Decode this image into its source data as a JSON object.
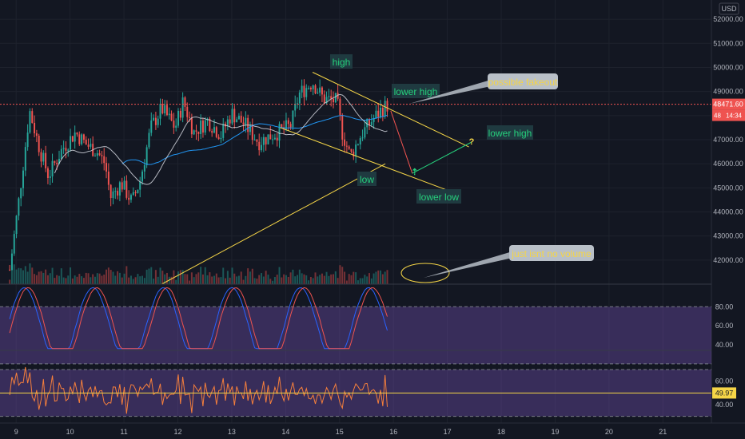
{
  "chart_data": {
    "type": "candlestick",
    "currency_label": "USD",
    "price_axis": {
      "range": [
        41000,
        52800
      ],
      "ticks": [
        "52000.00",
        "51000.00",
        "50000.00",
        "49000.00",
        "48000.00",
        "47000.00",
        "46000.00",
        "45000.00",
        "44000.00",
        "43000.00",
        "42000.00"
      ]
    },
    "last_price": {
      "value": 48471.6,
      "label": "48471.60",
      "countdown": "14:34",
      "tag_partial": "48"
    },
    "x_axis": {
      "ticks": [
        "9",
        "10",
        "11",
        "12",
        "13",
        "14",
        "15",
        "16",
        "17",
        "18",
        "19",
        "20",
        "21"
      ],
      "day_range": [
        8.7,
        21.9
      ]
    },
    "candles_summary": {
      "day_start": 8.88,
      "day_end": 15.92,
      "price_path": [
        [
          8.88,
          41600
        ],
        [
          9.05,
          44500
        ],
        [
          9.25,
          48200
        ],
        [
          9.45,
          46500
        ],
        [
          9.6,
          45500
        ],
        [
          9.85,
          46600
        ],
        [
          10.1,
          47300
        ],
        [
          10.3,
          46800
        ],
        [
          10.5,
          46500
        ],
        [
          10.65,
          46000
        ],
        [
          10.75,
          44600
        ],
        [
          10.95,
          45200
        ],
        [
          11.15,
          44400
        ],
        [
          11.3,
          45300
        ],
        [
          11.5,
          47500
        ],
        [
          11.7,
          48300
        ],
        [
          11.95,
          47500
        ],
        [
          12.1,
          48600
        ],
        [
          12.3,
          47300
        ],
        [
          12.55,
          47800
        ],
        [
          12.8,
          47200
        ],
        [
          13.0,
          48100
        ],
        [
          13.25,
          47600
        ],
        [
          13.5,
          46900
        ],
        [
          13.75,
          47200
        ],
        [
          13.95,
          47400
        ],
        [
          14.1,
          47600
        ],
        [
          14.25,
          48900
        ],
        [
          14.5,
          49400
        ],
        [
          14.7,
          48700
        ],
        [
          14.95,
          48600
        ],
        [
          15.05,
          47300
        ],
        [
          15.2,
          46300
        ],
        [
          15.4,
          47200
        ],
        [
          15.6,
          47800
        ],
        [
          15.8,
          48300
        ],
        [
          15.92,
          48470
        ]
      ]
    },
    "annotations": [
      {
        "text": "high",
        "color": "#26d07c"
      },
      {
        "text": "lower high",
        "color": "#26d07c"
      },
      {
        "text": "possible fakeout",
        "color": "#f5d547"
      },
      {
        "text": "lower high",
        "color": "#26d07c"
      },
      {
        "text": "low",
        "color": "#26d07c"
      },
      {
        "text": "lower low",
        "color": "#26d07c"
      },
      {
        "text": "just isnt no volume",
        "color": "#f5d547"
      }
    ],
    "drawings": {
      "upper_trendline": [
        [
          14.5,
          49800
        ],
        [
          17.4,
          46700
        ]
      ],
      "lower_trendline_channel": [
        [
          13.9,
          47500
        ],
        [
          17.0,
          44900
        ]
      ],
      "rising_trendline": [
        [
          11.7,
          41000
        ],
        [
          15.85,
          46000
        ]
      ],
      "projection_down": [
        [
          15.95,
          48200
        ],
        [
          16.35,
          45600
        ]
      ],
      "projection_up": [
        [
          16.35,
          45600
        ],
        [
          17.45,
          46900
        ]
      ]
    },
    "stoch_rsi": {
      "levels": [
        20,
        80
      ],
      "ticks": [
        "80.00",
        "60.00",
        "40.00"
      ],
      "range": [
        35,
        102
      ]
    },
    "rsi": {
      "levels": [
        30,
        70
      ],
      "ticks": [
        "60.00",
        "40.00"
      ],
      "range": [
        25,
        85
      ],
      "current": 49.97,
      "current_label": "49.97"
    },
    "colors": {
      "up": "#26a69a",
      "down": "#ef5350",
      "ma_fast": "#d1d4dc",
      "ma_slow": "#2196f3",
      "trendline": "#f5d547",
      "stoch_k": "#2962ff",
      "stoch_d": "#ef5350",
      "rsi_line": "#f57f3c"
    }
  }
}
